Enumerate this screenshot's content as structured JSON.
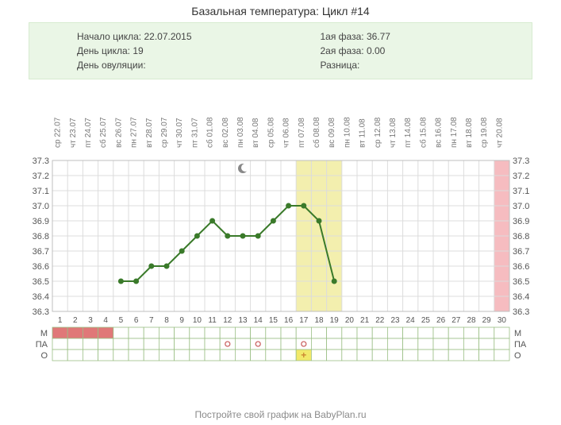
{
  "title": "Базальная температура: Цикл #14",
  "info": {
    "left": [
      {
        "label": "Начало цикла:",
        "value": "22.07.2015"
      },
      {
        "label": "День цикла:",
        "value": "19"
      },
      {
        "label": "День овуляции:",
        "value": ""
      }
    ],
    "right": [
      {
        "label": "1ая фаза:",
        "value": "36.77"
      },
      {
        "label": "2ая фаза:",
        "value": "0.00"
      },
      {
        "label": "Разница:",
        "value": ""
      }
    ]
  },
  "chart": {
    "type": "line",
    "days": 30,
    "y_min": 36.3,
    "y_max": 37.3,
    "y_step": 0.1,
    "dates": [
      {
        "wd": "ср",
        "d": "22.07"
      },
      {
        "wd": "чт",
        "d": "23.07"
      },
      {
        "wd": "пт",
        "d": "24.07"
      },
      {
        "wd": "сб",
        "d": "25.07"
      },
      {
        "wd": "вс",
        "d": "26.07"
      },
      {
        "wd": "пн",
        "d": "27.07"
      },
      {
        "wd": "вт",
        "d": "28.07"
      },
      {
        "wd": "ср",
        "d": "29.07"
      },
      {
        "wd": "чт",
        "d": "30.07"
      },
      {
        "wd": "пт",
        "d": "31.07"
      },
      {
        "wd": "сб",
        "d": "01.08"
      },
      {
        "wd": "вс",
        "d": "02.08"
      },
      {
        "wd": "пн",
        "d": "03.08"
      },
      {
        "wd": "вт",
        "d": "04.08"
      },
      {
        "wd": "ср",
        "d": "05.08"
      },
      {
        "wd": "чт",
        "d": "06.08"
      },
      {
        "wd": "пт",
        "d": "07.08"
      },
      {
        "wd": "сб",
        "d": "08.08"
      },
      {
        "wd": "вс",
        "d": "09.08"
      },
      {
        "wd": "пн",
        "d": "10.08"
      },
      {
        "wd": "вт",
        "d": "11.08"
      },
      {
        "wd": "ср",
        "d": "12.08"
      },
      {
        "wd": "чт",
        "d": "13.08"
      },
      {
        "wd": "пт",
        "d": "14.08"
      },
      {
        "wd": "сб",
        "d": "15.08"
      },
      {
        "wd": "вс",
        "d": "16.08"
      },
      {
        "wd": "пн",
        "d": "17.08"
      },
      {
        "wd": "вт",
        "d": "18.08"
      },
      {
        "wd": "ср",
        "d": "19.08"
      },
      {
        "wd": "чт",
        "d": "20.08"
      }
    ],
    "series": [
      {
        "day": 5,
        "temp": 36.5
      },
      {
        "day": 6,
        "temp": 36.5
      },
      {
        "day": 7,
        "temp": 36.6
      },
      {
        "day": 8,
        "temp": 36.6
      },
      {
        "day": 9,
        "temp": 36.7
      },
      {
        "day": 10,
        "temp": 36.8
      },
      {
        "day": 11,
        "temp": 36.9
      },
      {
        "day": 12,
        "temp": 36.8
      },
      {
        "day": 13,
        "temp": 36.8
      },
      {
        "day": 14,
        "temp": 36.8
      },
      {
        "day": 15,
        "temp": 36.9
      },
      {
        "day": 16,
        "temp": 37.0
      },
      {
        "day": 17,
        "temp": 37.0
      },
      {
        "day": 18,
        "temp": 36.9
      },
      {
        "day": 19,
        "temp": 36.5
      }
    ],
    "line_color": "#3a7a2a",
    "marker_color": "#3a7a2a",
    "marker_radius": 3.5,
    "line_width": 2,
    "grid_color": "#dcdcdc",
    "border_color": "#bfbfbf",
    "highlight_band": {
      "from_day": 17,
      "to_day": 19,
      "color": "#f3efae"
    },
    "last_col_color": "#f6bcc0",
    "moon_day": 13,
    "moon_color": "#888888",
    "background": "#ffffff"
  },
  "rows": {
    "labels": [
      "М",
      "ПА",
      "О"
    ],
    "m_filled": {
      "from": 1,
      "to": 4,
      "color": "#e07878"
    },
    "pa_circles": [
      12,
      14,
      17
    ],
    "pa_circle_color": "#cc6666",
    "o_plus_day": 17,
    "o_plus_bg": "#f2e96a",
    "o_plus_color": "#cc8833",
    "cell_border": "#9bbf85",
    "cell_bg": "#ffffff"
  },
  "footer_text": "Постройте свой график на BabyPlan.ru"
}
